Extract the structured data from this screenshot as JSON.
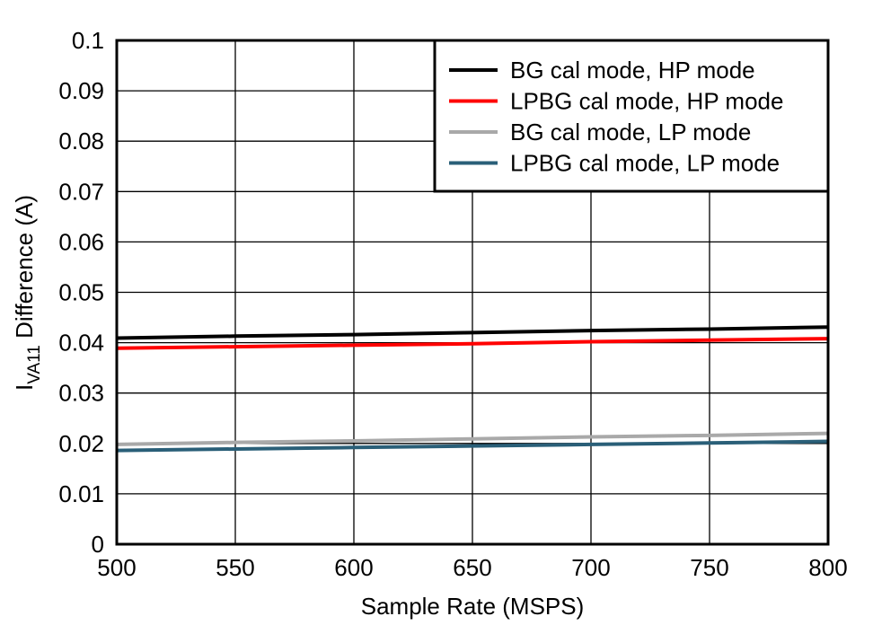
{
  "chart_data": {
    "type": "line",
    "title": "",
    "xlabel": "Sample Rate (MSPS)",
    "ylabel_main": "I",
    "ylabel_sub": "VA11",
    "ylabel_rest": " Difference (A)",
    "xlim": [
      500,
      800
    ],
    "ylim": [
      0,
      0.1
    ],
    "xticks": [
      "500",
      "550",
      "600",
      "650",
      "700",
      "750",
      "800"
    ],
    "yticks": [
      "0",
      "0.01",
      "0.02",
      "0.03",
      "0.04",
      "0.05",
      "0.06",
      "0.07",
      "0.08",
      "0.09",
      "0.1"
    ],
    "grid": true,
    "legend_position": "top-right",
    "x": [
      500,
      550,
      600,
      650,
      700,
      750,
      800
    ],
    "series": [
      {
        "name": "BG cal mode, HP mode",
        "color": "#000000",
        "values": [
          0.0409,
          0.0413,
          0.0416,
          0.042,
          0.0424,
          0.0427,
          0.0431
        ]
      },
      {
        "name": "LPBG cal mode, HP mode",
        "color": "#ff0000",
        "values": [
          0.0389,
          0.0392,
          0.0395,
          0.0398,
          0.0402,
          0.0405,
          0.0408
        ]
      },
      {
        "name": "BG cal mode, LP mode",
        "color": "#a9a9a9",
        "values": [
          0.0198,
          0.0202,
          0.0205,
          0.0209,
          0.0213,
          0.0216,
          0.022
        ]
      },
      {
        "name": "LPBG cal mode, LP mode",
        "color": "#2a5f78",
        "values": [
          0.0186,
          0.0189,
          0.0192,
          0.0195,
          0.0198,
          0.0201,
          0.0204
        ]
      }
    ]
  }
}
